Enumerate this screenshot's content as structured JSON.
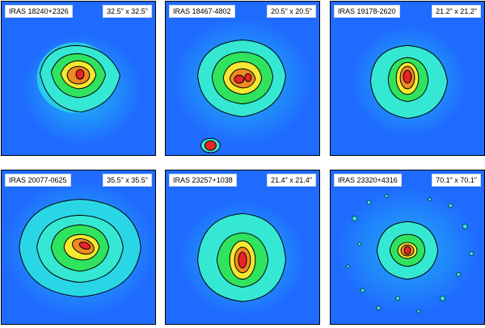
{
  "panels": [
    {
      "name": "IRAS 18240+2326",
      "size": "32.5\" x 32.5\""
    },
    {
      "name": "IRAS 18467-4802",
      "size": "20.5\" x 20.5\""
    },
    {
      "name": "IRAS 19178-2620",
      "size": "21.2\" x 21.2\""
    },
    {
      "name": "IRAS 20077-0625",
      "size": "35.5\" x 35.5\""
    },
    {
      "name": "IRAS 23257+1038",
      "size": "21.4\" x 21.4\""
    },
    {
      "name": "IRAS 23320+4316",
      "size": "70.1\" x 70.1\""
    }
  ],
  "colors": {
    "background": "#1f6bff",
    "halo": "#22c3f2",
    "cyan": "#35e8d4",
    "green": "#2fe35e",
    "yellow": "#f4e832",
    "orange": "#ef8a22",
    "red": "#e8242a",
    "contour": "#000000"
  }
}
